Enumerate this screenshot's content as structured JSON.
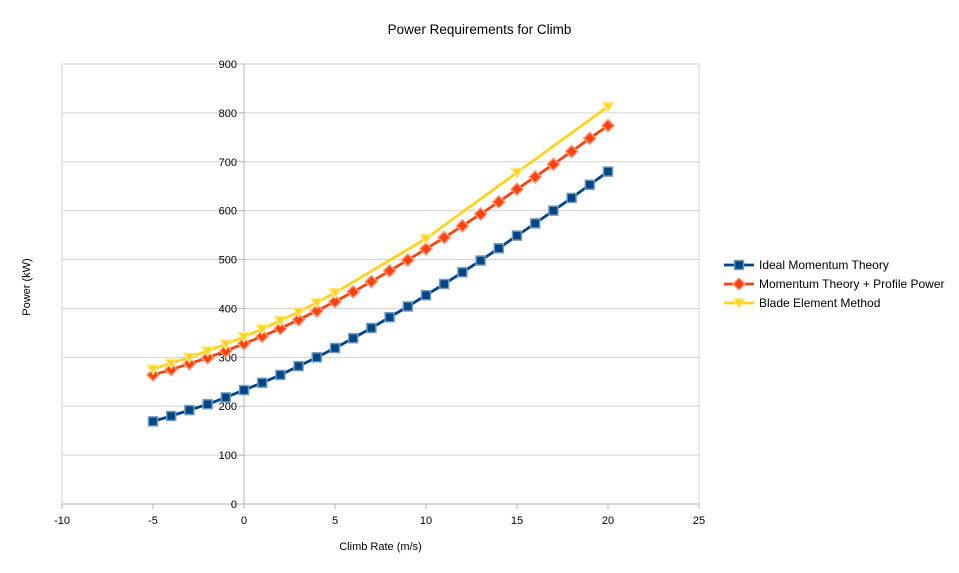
{
  "chart_data": {
    "type": "line",
    "title": "Power Requirements for Climb",
    "xlabel": "Climb Rate (m/s)",
    "ylabel": "Power (kW)",
    "xlim": [
      -10,
      25
    ],
    "ylim": [
      0,
      900
    ],
    "x_ticks": [
      -10,
      -5,
      0,
      5,
      10,
      15,
      20,
      25
    ],
    "y_ticks": [
      0,
      100,
      200,
      300,
      400,
      500,
      600,
      700,
      800,
      900
    ],
    "grid": "horizontal",
    "legend_position": "right",
    "axis_cross_x": 0,
    "colors": {
      "background": "#ffffff",
      "gridline": "#d3d3d3",
      "axis": "#b3b3b3",
      "text": "#000000"
    },
    "series": [
      {
        "name": "Ideal Momentum Theory",
        "color": "#004586",
        "marker": "square",
        "x": [
          -5,
          -4,
          -3,
          -2,
          -1,
          0,
          1,
          2,
          3,
          4,
          5,
          6,
          7,
          8,
          9,
          10,
          11,
          12,
          13,
          14,
          15,
          16,
          17,
          18,
          19,
          20
        ],
        "values": [
          169,
          180,
          192,
          204,
          218,
          233,
          248,
          264,
          282,
          300,
          319,
          339,
          360,
          382,
          404,
          427,
          450,
          474,
          498,
          523,
          549,
          574,
          600,
          626,
          653,
          680
        ]
      },
      {
        "name": "Momentum Theory + Profile Power",
        "color": "#FF420E",
        "marker": "diamond",
        "x": [
          -5,
          -4,
          -3,
          -2,
          -1,
          0,
          1,
          2,
          3,
          4,
          5,
          6,
          7,
          8,
          9,
          10,
          11,
          12,
          13,
          14,
          15,
          16,
          17,
          18,
          19,
          20
        ],
        "values": [
          264,
          275,
          287,
          299,
          313,
          328,
          343,
          359,
          377,
          395,
          414,
          434,
          455,
          477,
          499,
          522,
          545,
          569,
          593,
          618,
          644,
          669,
          695,
          721,
          748,
          774
        ]
      },
      {
        "name": "Blade Element Method",
        "color": "#FFD320",
        "marker": "triangle-down",
        "x": [
          -5,
          -4,
          -3,
          -2,
          -1,
          0,
          1,
          2,
          3,
          4,
          5,
          10,
          15,
          20
        ],
        "values": [
          276,
          288,
          300,
          313,
          327,
          342,
          358,
          375,
          393,
          412,
          432,
          543,
          678,
          813
        ]
      }
    ]
  }
}
